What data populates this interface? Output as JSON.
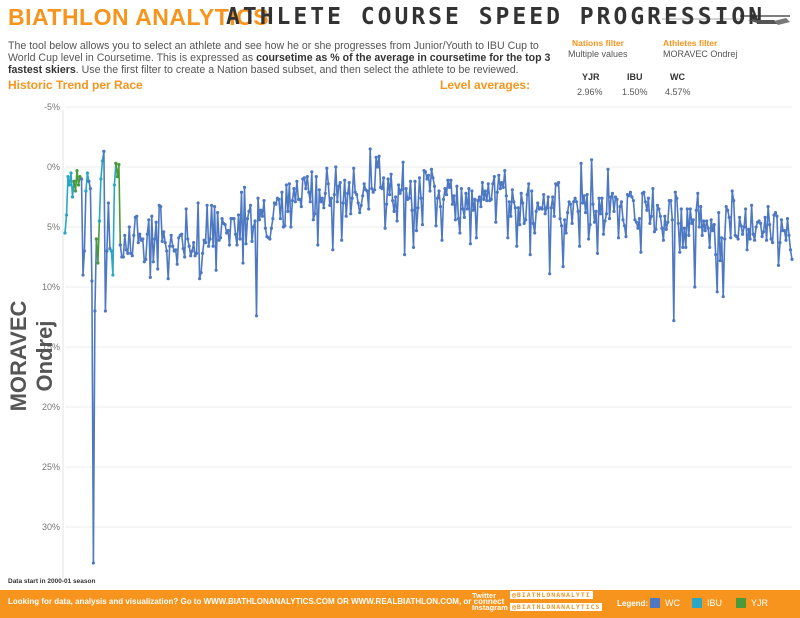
{
  "header": {
    "title_left": "BIATHLON ANALYTICS",
    "title_right": "ATHLETE COURSE SPEED PROGRESSION",
    "logo_icon": "skier-icon"
  },
  "description": {
    "part1": "The tool below allows you to select an athlete and see how he or she progresses from Junior/Youth to IBU Cup to World Cup level in Coursetime. This is expressed as ",
    "bold": "coursetime as % of the average in coursetime for the top 3 fastest skiers",
    "part2": ". Use the first filter to create a Nation based subset, and then select the athlete to be reviewed."
  },
  "filters": {
    "nations_label": "Nations filter",
    "nations_value": "Multiple values",
    "athletes_label": "Athletes filter",
    "athletes_value": "MORAVEC Ondrej"
  },
  "sections": {
    "trend_title": "Historic Trend per Race",
    "levels_title": "Level averages:"
  },
  "levels": [
    {
      "name": "YJR",
      "value": "2.96%"
    },
    {
      "name": "IBU",
      "value": "1.50%"
    },
    {
      "name": "WC",
      "value": "4.57%"
    }
  ],
  "y_axis_title": "MORAVEC Ondrej",
  "data_note": "Data start in 2000-01 season",
  "footer": {
    "text": "Looking for data, analysis and visualization? Go to WWW.BIATHLONANALYTICS.COM OR WWW.REALBIATHLON.COM, or connect",
    "twitter_label": "Twitter",
    "twitter_handle": "@BIATHLONANALYTI",
    "instagram_label": "Instagram",
    "instagram_handle": "@BIATHLONANALYTICS",
    "legend_title": "Legend:"
  },
  "colors": {
    "orange": "#f7941d",
    "WC": "#4e79c2",
    "IBU": "#2aa7c4",
    "YJR": "#4a9a3a"
  },
  "chart_data": {
    "type": "line",
    "ylim": [
      -5,
      34
    ],
    "y_reversed": true,
    "y_ticks": [
      "-5%",
      "0%",
      "5%",
      "10%",
      "15%",
      "20%",
      "25%",
      "30%"
    ],
    "y_tick_values": [
      -5,
      0,
      5,
      10,
      15,
      20,
      25,
      30
    ],
    "x_count": 487,
    "legend": [
      {
        "name": "WC",
        "color": "#4e79c2"
      },
      {
        "name": "IBU",
        "color": "#2aa7c4"
      },
      {
        "name": "YJR",
        "color": "#4a9a3a"
      }
    ],
    "series": [
      {
        "name": "IBU",
        "segment": 1,
        "x": [
          0,
          1,
          2,
          3,
          4,
          5,
          6
        ],
        "values": [
          5.5,
          4.0,
          0.8,
          1.5,
          0.5,
          2.5,
          1.2
        ]
      },
      {
        "name": "YJR",
        "segment": 1,
        "x": [
          6,
          7,
          8,
          9,
          10,
          11
        ],
        "values": [
          1.2,
          2.0,
          0.3,
          1.5,
          0.8,
          1.0
        ]
      },
      {
        "name": "WC",
        "segment": 1,
        "x": [
          11,
          12,
          13,
          14
        ],
        "values": [
          1.0,
          9.0,
          7.0,
          2.0
        ]
      },
      {
        "name": "IBU",
        "segment": 2,
        "x": [
          14,
          15,
          16
        ],
        "values": [
          2.0,
          0.5,
          1.2
        ]
      },
      {
        "name": "WC",
        "segment": 2,
        "x": [
          16,
          17,
          18,
          19,
          20,
          21
        ],
        "values": [
          1.2,
          1.8,
          9.5,
          33.0,
          12.0,
          6.0
        ]
      },
      {
        "name": "YJR",
        "segment": 2,
        "x": [
          21,
          22,
          23
        ],
        "values": [
          6.0,
          8.0,
          4.5
        ]
      },
      {
        "name": "IBU",
        "segment": 3,
        "x": [
          23,
          24,
          25,
          26
        ],
        "values": [
          4.5,
          1.0,
          -0.5,
          -1.3
        ]
      },
      {
        "name": "WC",
        "segment": 3,
        "x": [
          26,
          27,
          28,
          29,
          30,
          31
        ],
        "values": [
          -1.3,
          12.0,
          7.0,
          3.0,
          6.8,
          7.0
        ]
      },
      {
        "name": "IBU",
        "segment": 4,
        "x": [
          31,
          32,
          33,
          34
        ],
        "values": [
          7.0,
          9.0,
          1.5,
          -0.3
        ]
      },
      {
        "name": "YJR",
        "segment": 4,
        "x": [
          34,
          35,
          36,
          37
        ],
        "values": [
          -0.3,
          0.8,
          -0.2,
          6.5
        ]
      }
    ]
  }
}
